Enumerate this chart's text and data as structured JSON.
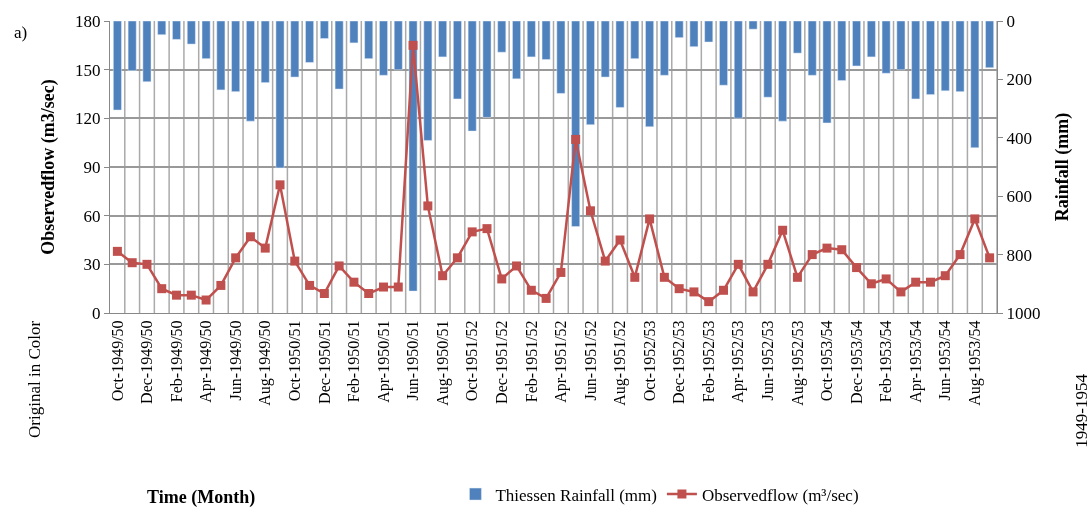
{
  "chart_data": {
    "type": "bar",
    "ylabel": "Observedflow (m3/sec)",
    "y2label": "Rainfall (mm)",
    "xlabel": "Time (Month)",
    "annotations": [
      "a)",
      "Original in Color",
      "1949-1954"
    ],
    "categories": [
      "Oct-1949/50",
      null,
      "Dec-1949/50",
      null,
      "Feb-1949/50",
      null,
      "Apr-1949/50",
      null,
      "Jun-1949/50",
      null,
      "Aug-1949/50",
      null,
      "Oct-1950/51",
      null,
      "Dec-1950/51",
      null,
      "Feb-1950/51",
      null,
      "Apr-1950/51",
      null,
      "Jun-1950/51",
      null,
      "Aug-1950/51",
      null,
      "Oct-1951/52",
      null,
      "Dec-1951/52",
      null,
      "Feb-1951/52",
      null,
      "Apr-1951/52",
      null,
      "Jun-1951/52",
      null,
      "Aug-1951/52",
      null,
      "Oct-1952/53",
      null,
      "Dec-1952/53",
      null,
      "Feb-1952/53",
      null,
      "Apr-1952/53",
      null,
      "Jun-1952/53",
      null,
      "Aug-1952/53",
      null,
      "Oct-1953/54",
      null,
      "Dec-1953/54",
      null,
      "Feb-1953/54",
      null,
      "Apr-1953/54",
      null,
      "Jun-1953/54",
      null,
      "Aug-1953/54",
      null
    ],
    "series": [
      {
        "name": "Thiessen Rainfall (mm)",
        "axis": "y2",
        "color": "#4f81bd",
        "values": [
          305,
          170,
          208,
          47,
          63,
          79,
          129,
          236,
          242,
          343,
          211,
          503,
          192,
          142,
          60,
          233,
          75,
          129,
          186,
          167,
          925,
          409,
          123,
          267,
          377,
          330,
          107,
          198,
          123,
          132,
          248,
          704,
          355,
          192,
          296,
          129,
          362,
          186,
          57,
          88,
          72,
          220,
          333,
          28,
          261,
          343,
          110,
          186,
          349,
          204,
          154,
          123,
          179,
          167,
          267,
          252,
          239,
          242,
          434,
          160
        ]
      },
      {
        "name": "Observedflow (m³/sec)",
        "type": "line",
        "axis": "y",
        "color": "#c0504d",
        "marker": "square",
        "values": [
          38,
          31,
          30,
          15,
          11,
          11,
          8,
          17,
          34,
          47,
          40,
          79,
          32,
          17,
          12,
          29,
          19,
          12,
          16,
          16,
          165,
          66,
          23,
          34,
          50,
          52,
          21,
          29,
          14,
          9,
          25,
          107,
          63,
          32,
          45,
          22,
          58,
          22,
          15,
          13,
          7,
          14,
          30,
          13,
          30,
          51,
          22,
          36,
          40,
          39,
          28,
          18,
          21,
          13,
          19,
          19,
          23,
          36,
          58,
          34
        ]
      }
    ],
    "ylim": [
      0,
      180
    ],
    "yticks": [
      0,
      30,
      60,
      90,
      120,
      150,
      180
    ],
    "y2lim": [
      1000,
      0
    ],
    "y2ticks": [
      0,
      200,
      400,
      600,
      800,
      1000
    ],
    "grid": true,
    "legend": "bottom"
  }
}
